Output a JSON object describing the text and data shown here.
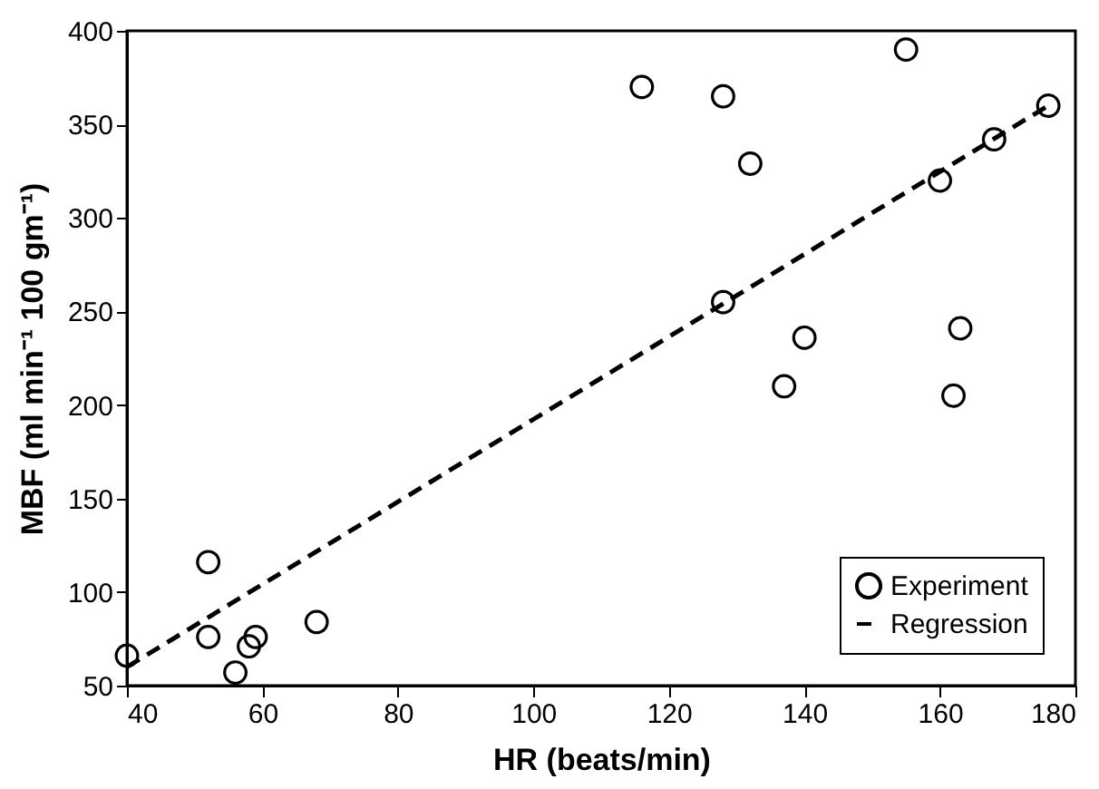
{
  "chart_data": {
    "type": "scatter",
    "xlabel": "HR (beats/min)",
    "ylabel": "MBF (ml min⁻¹ 100 gm⁻¹)",
    "xlim": [
      40,
      180
    ],
    "ylim": [
      50,
      400
    ],
    "xticks": [
      40,
      60,
      80,
      100,
      120,
      140,
      160,
      180
    ],
    "yticks": [
      50,
      100,
      150,
      200,
      250,
      300,
      350,
      400
    ],
    "grid": false,
    "legend": "bottom right",
    "series": [
      {
        "name": "Experiment",
        "marker": "circle",
        "color": "#000000",
        "x": [
          40,
          52,
          52,
          56,
          58,
          59,
          68,
          116,
          128,
          132,
          128,
          137,
          140,
          155,
          160,
          162,
          163,
          168,
          176
        ],
        "values": [
          66,
          116,
          76,
          57,
          71,
          76,
          84,
          370,
          365,
          329,
          255,
          210,
          236,
          390,
          320,
          205,
          241,
          342,
          360
        ]
      },
      {
        "name": "Regression",
        "type": "line",
        "line_style": "dashed",
        "marker": "none",
        "color": "#000000",
        "x": [
          40,
          176
        ],
        "values": [
          60,
          360
        ]
      }
    ]
  }
}
